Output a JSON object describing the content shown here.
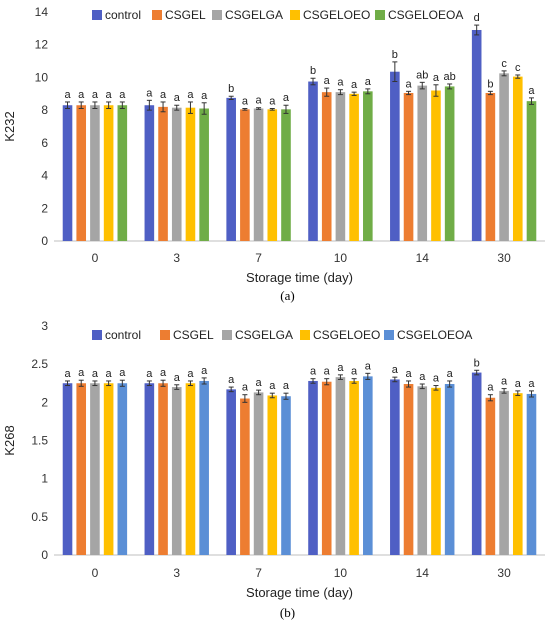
{
  "chart_data": [
    {
      "type": "bar",
      "panel_label": "(a)",
      "xlabel": "Storage time (day)",
      "ylabel": "K232",
      "ylim": [
        0,
        14
      ],
      "yticks": [
        0,
        2,
        4,
        6,
        8,
        10,
        12,
        14
      ],
      "grid": false,
      "legend_position": "top",
      "categories": [
        "0",
        "3",
        "7",
        "10",
        "14",
        "30"
      ],
      "series": [
        {
          "name": "control",
          "color": "#4f5fc4",
          "values": [
            8.3,
            8.3,
            8.75,
            9.75,
            10.35,
            12.9
          ],
          "errors": [
            0.2,
            0.3,
            0.1,
            0.2,
            0.6,
            0.3
          ],
          "letters": [
            "a",
            "a",
            "b",
            "b",
            "b",
            "d"
          ]
        },
        {
          "name": "CSGEL",
          "color": "#ed7d31",
          "values": [
            8.3,
            8.2,
            8.05,
            9.1,
            9.05,
            9.05
          ],
          "errors": [
            0.2,
            0.3,
            0.05,
            0.25,
            0.1,
            0.1
          ],
          "letters": [
            "a",
            "a",
            "a",
            "a",
            "a",
            "b"
          ]
        },
        {
          "name": "CSGELGA",
          "color": "#a5a5a5",
          "values": [
            8.3,
            8.15,
            8.1,
            9.1,
            9.5,
            10.25
          ],
          "errors": [
            0.2,
            0.15,
            0.05,
            0.15,
            0.2,
            0.15
          ],
          "letters": [
            "a",
            "a",
            "a",
            "a",
            "ab",
            "c"
          ]
        },
        {
          "name": "CSGELOEO",
          "color": "#ffc000",
          "values": [
            8.3,
            8.15,
            8.05,
            9.0,
            9.2,
            10.05
          ],
          "errors": [
            0.2,
            0.35,
            0.05,
            0.1,
            0.35,
            0.1
          ],
          "letters": [
            "a",
            "a",
            "a",
            "a",
            "a",
            "c"
          ]
        },
        {
          "name": "CSGELOEOA",
          "color": "#70ad47",
          "values": [
            8.3,
            8.1,
            8.05,
            9.15,
            9.45,
            8.55
          ],
          "errors": [
            0.2,
            0.35,
            0.25,
            0.15,
            0.15,
            0.2
          ],
          "letters": [
            "a",
            "a",
            "a",
            "a",
            "ab",
            "a"
          ]
        }
      ]
    },
    {
      "type": "bar",
      "panel_label": "(b)",
      "xlabel": "Storage time (day)",
      "ylabel": "K268",
      "ylim": [
        0,
        3
      ],
      "yticks": [
        0,
        0.5,
        1,
        1.5,
        2,
        2.5,
        3
      ],
      "grid": false,
      "legend_position": "top",
      "categories": [
        "0",
        "3",
        "7",
        "10",
        "14",
        "30"
      ],
      "series": [
        {
          "name": "control",
          "color": "#4f5fc4",
          "values": [
            2.25,
            2.25,
            2.17,
            2.28,
            2.3,
            2.39
          ],
          "errors": [
            0.03,
            0.03,
            0.03,
            0.03,
            0.03,
            0.03
          ],
          "letters": [
            "a",
            "a",
            "a",
            "a",
            "a",
            "b"
          ]
        },
        {
          "name": "CSGEL",
          "color": "#ed7d31",
          "values": [
            2.25,
            2.25,
            2.05,
            2.27,
            2.24,
            2.06
          ],
          "errors": [
            0.04,
            0.04,
            0.05,
            0.04,
            0.04,
            0.04
          ],
          "letters": [
            "a",
            "a",
            "a",
            "a",
            "a",
            "a"
          ]
        },
        {
          "name": "CSGELGA",
          "color": "#a5a5a5",
          "values": [
            2.25,
            2.2,
            2.13,
            2.33,
            2.21,
            2.15
          ],
          "errors": [
            0.03,
            0.03,
            0.03,
            0.03,
            0.03,
            0.03
          ],
          "letters": [
            "a",
            "a",
            "a",
            "a",
            "a",
            "a"
          ]
        },
        {
          "name": "CSGELOEO",
          "color": "#ffc000",
          "values": [
            2.25,
            2.25,
            2.09,
            2.28,
            2.19,
            2.12
          ],
          "errors": [
            0.03,
            0.03,
            0.03,
            0.03,
            0.03,
            0.03
          ],
          "letters": [
            "a",
            "a",
            "a",
            "a",
            "a",
            "a"
          ]
        },
        {
          "name": "CSGELOEOA",
          "color": "#5b8fd6",
          "values": [
            2.25,
            2.28,
            2.08,
            2.34,
            2.24,
            2.11
          ],
          "errors": [
            0.04,
            0.04,
            0.04,
            0.04,
            0.04,
            0.04
          ],
          "letters": [
            "a",
            "a",
            "a",
            "a",
            "a",
            "a"
          ]
        }
      ]
    }
  ]
}
